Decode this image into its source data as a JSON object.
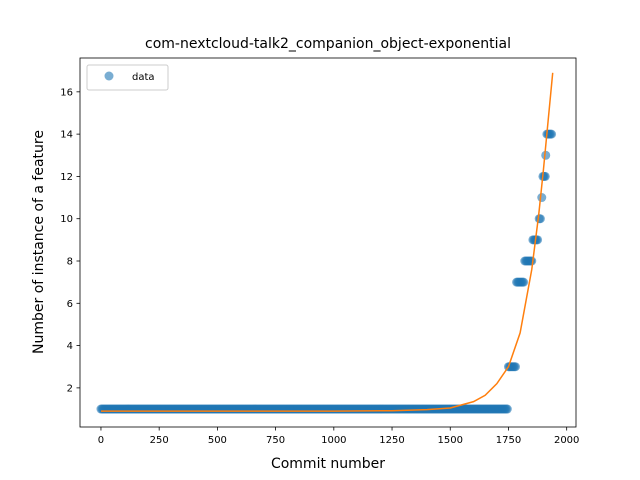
{
  "chart_data": {
    "type": "scatter",
    "title": "com-nextcloud-talk2_companion_object-exponential",
    "xlabel": "Commit number",
    "ylabel": "Number of instance of a feature",
    "xlim": [
      -90,
      2040
    ],
    "ylim": [
      0.15,
      17.6
    ],
    "xticks": [
      0,
      250,
      500,
      750,
      1000,
      1250,
      1500,
      1750,
      2000
    ],
    "yticks": [
      2,
      4,
      6,
      8,
      10,
      12,
      14,
      16
    ],
    "legend": {
      "position": "top-left",
      "entries": [
        "data"
      ]
    },
    "grid": false,
    "colors": {
      "data": "#1f77b4",
      "fit": "#ff7f0e"
    },
    "series": [
      {
        "name": "data",
        "kind": "scatter",
        "segments": [
          {
            "x_start": 0,
            "x_end": 1745,
            "y": 1
          },
          {
            "x_start": 1750,
            "x_end": 1780,
            "y": 3
          },
          {
            "x_start": 1785,
            "x_end": 1815,
            "y": 7
          },
          {
            "x_start": 1820,
            "x_end": 1850,
            "y": 8
          },
          {
            "x_start": 1855,
            "x_end": 1878,
            "y": 9
          },
          {
            "x_start": 1882,
            "x_end": 1890,
            "y": 10
          },
          {
            "x_start": 1893,
            "x_end": 1897,
            "y": 11
          },
          {
            "x_start": 1898,
            "x_end": 1908,
            "y": 12
          },
          {
            "x_start": 1910,
            "x_end": 1913,
            "y": 13
          },
          {
            "x_start": 1915,
            "x_end": 1938,
            "y": 14
          }
        ]
      },
      {
        "kind": "line",
        "model": "exponential",
        "x": [
          0,
          250,
          500,
          750,
          1000,
          1250,
          1400,
          1500,
          1600,
          1650,
          1700,
          1750,
          1800,
          1850,
          1880,
          1900,
          1920,
          1940
        ],
        "y": [
          0.9,
          0.9,
          0.9,
          0.9,
          0.9,
          0.92,
          0.97,
          1.05,
          1.35,
          1.65,
          2.2,
          3.0,
          4.6,
          7.6,
          10.2,
          12.3,
          14.6,
          16.9
        ]
      }
    ]
  }
}
